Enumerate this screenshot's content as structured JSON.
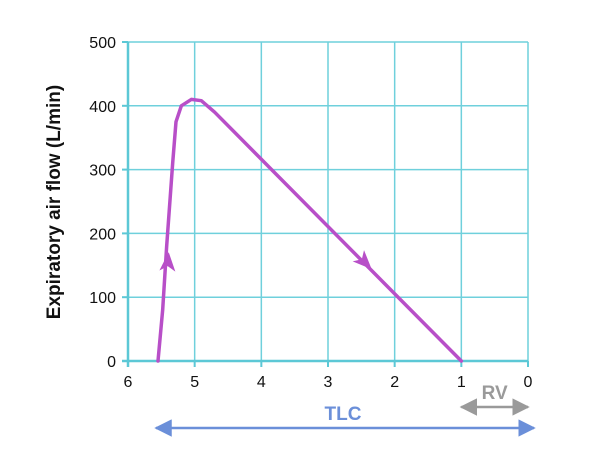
{
  "chart_data": {
    "type": "line",
    "title": "",
    "xlabel": "",
    "ylabel": "Expiratory air flow (L/min)",
    "x_reversed": true,
    "xlim": [
      6,
      0
    ],
    "ylim": [
      0,
      500
    ],
    "x_ticks": [
      "6",
      "5",
      "4",
      "3",
      "2",
      "1",
      "0"
    ],
    "y_ticks": [
      "0",
      "100",
      "200",
      "300",
      "400",
      "500"
    ],
    "grid": true,
    "series": [
      {
        "color": "#b84fc8",
        "points": [
          [
            5.55,
            0
          ],
          [
            5.48,
            80
          ],
          [
            5.42,
            180
          ],
          [
            5.33,
            310
          ],
          [
            5.28,
            375
          ],
          [
            5.2,
            400
          ],
          [
            5.05,
            410
          ],
          [
            4.9,
            408
          ],
          [
            4.7,
            390
          ],
          [
            1.0,
            0
          ]
        ],
        "arrows": [
          {
            "at": [
              5.4,
              155
            ],
            "direction": "up"
          },
          {
            "at": [
              2.45,
              155
            ],
            "direction": "down-right"
          }
        ]
      }
    ],
    "annotations": [
      {
        "label": "RV",
        "from": 1,
        "to": 0,
        "color": "#9a9a9a"
      },
      {
        "label": "TLC",
        "from": 5.55,
        "to": 0,
        "color": "#6b8fd9"
      }
    ],
    "grid_color": "#6fd0dc",
    "axis_color": "#5cc8d6"
  }
}
